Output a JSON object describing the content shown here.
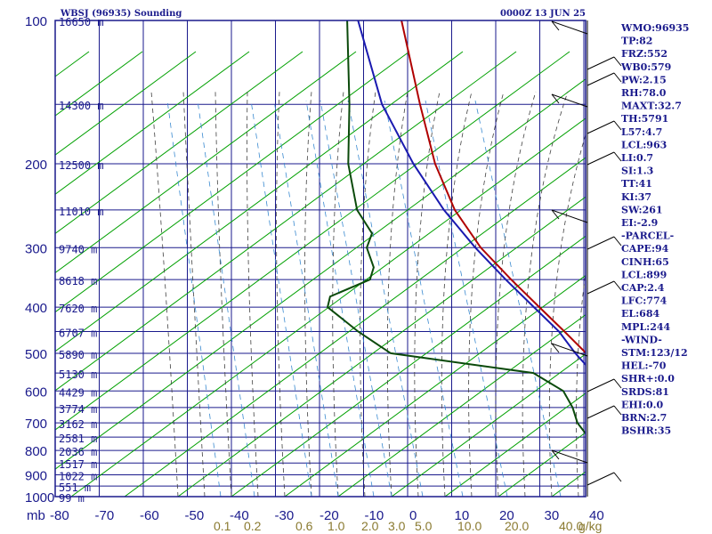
{
  "header": {
    "station": "WBSJ (96935) Sounding",
    "time": "0000Z 13 JUN 25"
  },
  "chart_data": {
    "type": "line",
    "title": "WBSJ (96935) Sounding",
    "subtitle": "0000Z 13 JUN 25",
    "xlabel": "",
    "ylabel": "mb",
    "p_axis_labels": [
      "100",
      "200",
      "300",
      "400",
      "500",
      "600",
      "700",
      "800",
      "900",
      "1000"
    ],
    "t_axis_labels": [
      "-80",
      "-70",
      "-60",
      "-50",
      "-40",
      "-30",
      "-20",
      "-10",
      "0",
      "10",
      "20",
      "30",
      "40"
    ],
    "mixing_ratio_labels": [
      "0.1",
      "0.2",
      "0.6",
      "1.0",
      "2.0",
      "3.0",
      "5.0",
      "10.0",
      "20.0",
      "40.0"
    ],
    "mixing_ratio_unit": "g/kg",
    "height_labels": [
      {
        "p": 100,
        "h": "16650 m"
      },
      {
        "p": 150,
        "h": "14300 m"
      },
      {
        "p": 200,
        "h": "12500 m"
      },
      {
        "p": 250,
        "h": "11010 m"
      },
      {
        "p": 300,
        "h": "9740 m"
      },
      {
        "p": 350,
        "h": "8618 m"
      },
      {
        "p": 400,
        "h": "7620 m"
      },
      {
        "p": 450,
        "h": "6707 m"
      },
      {
        "p": 500,
        "h": "5890 m"
      },
      {
        "p": 550,
        "h": "5130 m"
      },
      {
        "p": 600,
        "h": "4429 m"
      },
      {
        "p": 650,
        "h": "3774 m"
      },
      {
        "p": 700,
        "h": "3162 m"
      },
      {
        "p": 750,
        "h": "2581 m"
      },
      {
        "p": 800,
        "h": "2036 m"
      },
      {
        "p": 850,
        "h": "1517 m"
      },
      {
        "p": 900,
        "h": "1022 m"
      },
      {
        "p": 950,
        "h": "551 m"
      },
      {
        "p": 1000,
        "h": "99 m"
      }
    ],
    "series": [
      {
        "name": "temperature",
        "color": "#b00000",
        "points": [
          [
            100,
            -82
          ],
          [
            150,
            -67
          ],
          [
            200,
            -56
          ],
          [
            250,
            -46
          ],
          [
            300,
            -36
          ],
          [
            350,
            -26
          ],
          [
            400,
            -17
          ],
          [
            450,
            -9
          ],
          [
            500,
            -2
          ],
          [
            550,
            3
          ],
          [
            600,
            7
          ],
          [
            650,
            11
          ],
          [
            700,
            14
          ],
          [
            750,
            17
          ],
          [
            800,
            20
          ],
          [
            850,
            23
          ],
          [
            900,
            25
          ],
          [
            950,
            27
          ],
          [
            1000,
            28
          ]
        ]
      },
      {
        "name": "dewpoint",
        "color": "#0b4a0b",
        "points": [
          [
            100,
            -92
          ],
          [
            150,
            -80
          ],
          [
            200,
            -72
          ],
          [
            250,
            -64
          ],
          [
            280,
            -58
          ],
          [
            300,
            -57
          ],
          [
            330,
            -53
          ],
          [
            350,
            -52
          ],
          [
            380,
            -57
          ],
          [
            400,
            -56
          ],
          [
            450,
            -47
          ],
          [
            500,
            -38
          ],
          [
            520,
            -26
          ],
          [
            550,
            -9
          ],
          [
            600,
            -1
          ],
          [
            650,
            3
          ],
          [
            700,
            6
          ],
          [
            750,
            10
          ],
          [
            800,
            14
          ],
          [
            850,
            17
          ],
          [
            900,
            20
          ],
          [
            950,
            22
          ],
          [
            1000,
            23
          ]
        ]
      },
      {
        "name": "parcel",
        "color": "#1a1ab0",
        "points": [
          [
            100,
            -90
          ],
          [
            150,
            -74
          ],
          [
            200,
            -60
          ],
          [
            250,
            -48
          ],
          [
            300,
            -37
          ],
          [
            350,
            -27
          ],
          [
            400,
            -18
          ],
          [
            450,
            -10
          ],
          [
            500,
            -4
          ],
          [
            550,
            2
          ],
          [
            600,
            6
          ],
          [
            650,
            10
          ],
          [
            700,
            13
          ],
          [
            750,
            16
          ],
          [
            800,
            19
          ],
          [
            850,
            22
          ],
          [
            900,
            24
          ],
          [
            950,
            27
          ],
          [
            1000,
            29
          ]
        ]
      }
    ],
    "grid": true
  },
  "indices": [
    "WMO:96935",
    "TP:82",
    "FRZ:552",
    "WB0:579",
    "PW:2.15",
    "RH:78.0",
    "MAXT:32.7",
    "TH:5791",
    "L57:4.7",
    "LCL:963",
    "LI:0.7",
    "SI:1.3",
    "TT:41",
    "KI:37",
    "SW:261",
    "EI:-2.9",
    "-PARCEL-",
    "CAPE:94",
    "CINH:65",
    "LCL:899",
    "CAP:2.4",
    "LFC:774",
    "EL:684",
    "MPL:244",
    "-WIND-",
    "STM:123/12",
    "HEL:-70",
    "SHR+:0.0",
    "SRDS:81",
    "EHI:0.0",
    "BRN:2.7",
    "BSHR:35"
  ],
  "colors": {
    "axis": "#1a1a8c",
    "isotherm": "#1a1a8c",
    "dry_adiabat": "#00a000",
    "moist_adiabat": "#404040",
    "mixing_ratio": "#3a8ad0",
    "background": "#ffffff"
  }
}
